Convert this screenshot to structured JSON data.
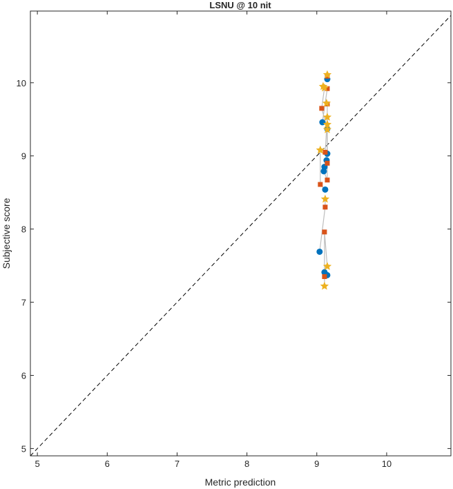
{
  "chart_data": {
    "type": "scatter",
    "title": "LSNU @ 10 nit",
    "xlabel": "Metric prediction",
    "ylabel": "Subjective score",
    "xlim": [
      4.9,
      10.92
    ],
    "ylim": [
      4.9,
      10.98
    ],
    "xticks": [
      5,
      6,
      7,
      8,
      9,
      10
    ],
    "yticks": [
      5,
      6,
      7,
      8,
      9,
      10
    ],
    "grid": false,
    "reference_line": "y = x (dashed)",
    "series": [
      {
        "name": "circle",
        "marker": "circle",
        "color": "#0072BD",
        "x": [
          9.15,
          9.08,
          9.15,
          9.15,
          9.14,
          9.11,
          9.1,
          9.12,
          9.04,
          9.11,
          9.15
        ],
        "y": [
          10.05,
          9.46,
          9.37,
          9.03,
          8.94,
          8.85,
          8.79,
          8.54,
          7.69,
          7.41,
          7.37
        ]
      },
      {
        "name": "square",
        "marker": "square",
        "color": "#D95319",
        "x": [
          9.15,
          9.15,
          9.07,
          9.15,
          9.12,
          9.15,
          9.15,
          9.05,
          9.12,
          9.11,
          9.11
        ],
        "y": [
          10.09,
          9.92,
          9.65,
          9.71,
          9.05,
          8.9,
          8.67,
          8.61,
          8.3,
          7.96,
          7.35
        ]
      },
      {
        "name": "star",
        "marker": "star",
        "color": "#EDB120",
        "x": [
          9.15,
          9.09,
          9.11,
          9.14,
          9.15,
          9.15,
          9.15,
          9.05,
          9.12,
          9.15,
          9.11
        ],
        "y": [
          10.11,
          9.95,
          9.93,
          9.72,
          9.53,
          9.43,
          9.36,
          9.08,
          8.41,
          7.49,
          7.22
        ]
      }
    ]
  }
}
